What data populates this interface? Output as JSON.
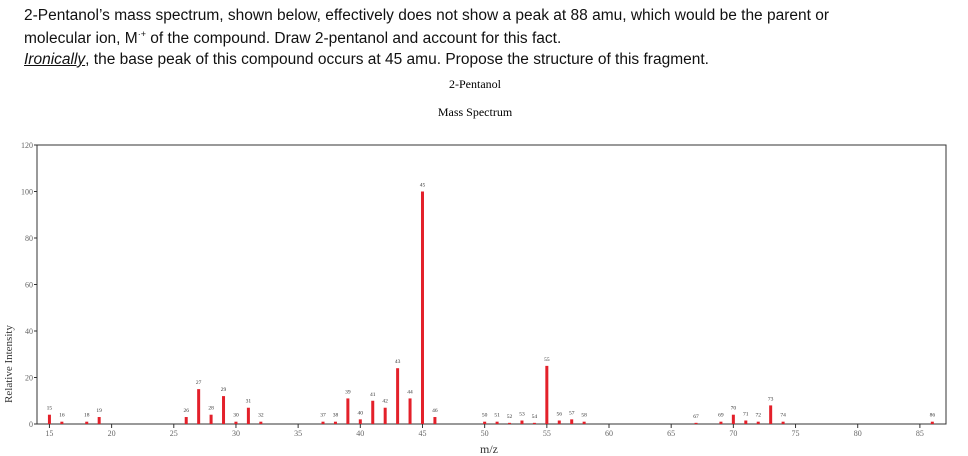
{
  "text": {
    "line1": "2-Pentanol’s mass spectrum, shown below, effectively does not show a peak at 88 amu, which would be the parent or",
    "line2": "molecular ion, M",
    "line2_sup": "·+",
    "line2_rest": " of the compound. Draw 2-pentanol and account for this fact.",
    "line3_em": "Ironically",
    "line3_rest": ", the base peak of this compound occurs at 45 amu. Propose the structure of this fragment."
  },
  "chart_data": {
    "type": "bar",
    "title": "2-Pentanol",
    "subtitle": "Mass Spectrum",
    "x_label": "m/z",
    "y_label": "Relative Intensity",
    "x": [
      15,
      16,
      18,
      19,
      26,
      27,
      28,
      29,
      30,
      31,
      32,
      37,
      38,
      39,
      40,
      41,
      42,
      43,
      44,
      45,
      46,
      50,
      51,
      52,
      53,
      54,
      55,
      56,
      57,
      58,
      67,
      69,
      70,
      71,
      72,
      73,
      74,
      86
    ],
    "values": [
      4,
      1,
      1,
      3,
      3,
      15,
      4,
      12,
      1,
      7,
      1,
      1,
      1,
      11,
      2,
      10,
      7,
      24,
      11,
      100,
      3,
      1,
      1,
      0.5,
      1.5,
      0.5,
      25,
      1.5,
      2,
      1,
      0.5,
      1,
      4,
      1.5,
      1,
      8,
      1,
      1
    ],
    "color": "#e3202a",
    "xlim": [
      14,
      87.1
    ],
    "xticks": [
      15,
      20,
      25,
      30,
      35,
      40,
      45,
      50,
      55,
      60,
      65,
      70,
      75,
      80,
      85
    ],
    "ylim": [
      0,
      120
    ],
    "yticks": [
      0,
      20,
      40,
      60,
      80,
      100,
      120
    ],
    "grid": false
  }
}
